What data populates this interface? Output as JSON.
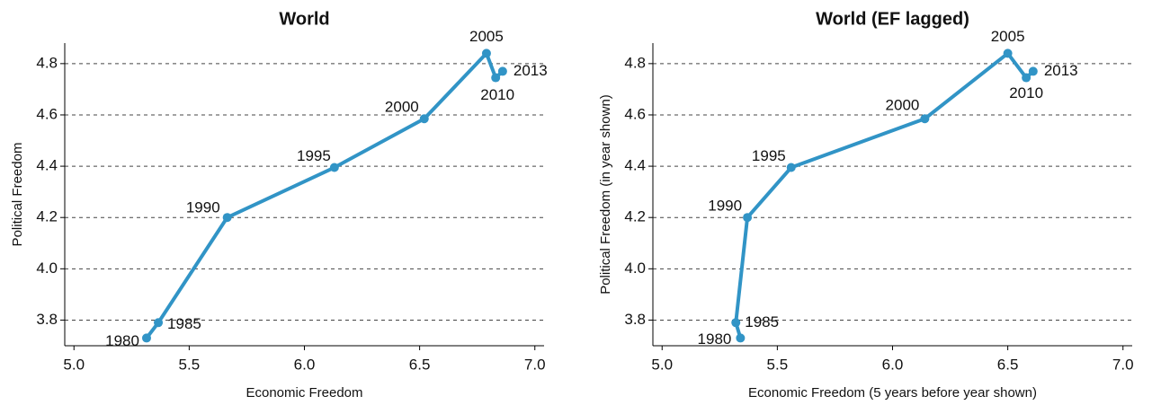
{
  "chart_data": [
    {
      "type": "line",
      "title": "World",
      "xlabel": "Economic Freedom",
      "ylabel": "Political Freedom",
      "x": [
        5.315,
        5.366,
        5.665,
        6.13,
        6.52,
        6.79,
        6.83,
        6.86
      ],
      "series": [
        {
          "color": "#3194c6",
          "values": [
            3.73,
            3.79,
            4.2,
            4.395,
            4.585,
            4.84,
            4.745,
            4.77
          ]
        }
      ],
      "annotations": [
        "1980",
        "1985",
        "1990",
        "1995",
        "2000",
        "2005",
        "2010",
        "2013"
      ],
      "xlim": [
        4.96,
        7.04
      ],
      "ylim": [
        3.7,
        4.88
      ],
      "xticks": [
        {
          "value": 5.0,
          "label": "5.0"
        },
        5.5,
        {
          "value": 6.0,
          "label": "6.0"
        },
        6.5,
        {
          "value": 7.0,
          "label": "7.0"
        }
      ],
      "yticks": [
        3.8,
        {
          "value": 4.0,
          "label": "4.0"
        },
        4.2,
        4.4,
        4.6,
        4.8
      ],
      "grid": true
    },
    {
      "type": "line",
      "title": "World (EF lagged)",
      "xlabel": "Economic Freedom (5 years before year shown)",
      "ylabel": "Political Freedom (in year shown)",
      "x": [
        5.34,
        5.32,
        5.37,
        5.56,
        6.14,
        6.5,
        6.58,
        6.61
      ],
      "series": [
        {
          "color": "#3194c6",
          "values": [
            3.73,
            3.79,
            4.2,
            4.395,
            4.585,
            4.84,
            4.745,
            4.77
          ]
        }
      ],
      "annotations": [
        "1980",
        "1985",
        "1990",
        "1995",
        "2000",
        "2005",
        "2010",
        "2013"
      ],
      "xlim": [
        4.96,
        7.04
      ],
      "ylim": [
        3.7,
        4.88
      ],
      "xticks": [
        {
          "value": 5.0,
          "label": "5.0"
        },
        5.5,
        {
          "value": 6.0,
          "label": "6.0"
        },
        6.5,
        {
          "value": 7.0,
          "label": "7.0"
        }
      ],
      "yticks": [
        3.8,
        {
          "value": 4.0,
          "label": "4.0"
        },
        4.2,
        4.4,
        4.6,
        4.8
      ],
      "grid": true
    }
  ]
}
